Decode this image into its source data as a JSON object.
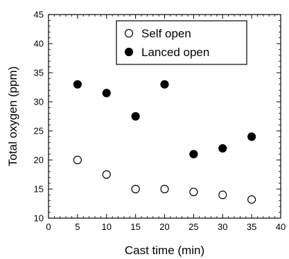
{
  "chart_data": {
    "type": "scatter",
    "xlabel": "Cast time (min)",
    "ylabel": "Total oxygen  (ppm)",
    "xlim": [
      0,
      40
    ],
    "ylim": [
      10,
      45
    ],
    "x_ticks": [
      "0",
      "5",
      "10",
      "15",
      "20",
      "25",
      "30",
      "35",
      "40"
    ],
    "y_ticks": [
      "10",
      "15",
      "20",
      "25",
      "30",
      "35",
      "40",
      "45"
    ],
    "grid": false,
    "legend_position": "top-right",
    "series": [
      {
        "name": "Self open",
        "marker": "open-circle",
        "color": "#000000",
        "points": [
          {
            "x": 5,
            "y": 20.0
          },
          {
            "x": 10,
            "y": 17.5
          },
          {
            "x": 15,
            "y": 15.0
          },
          {
            "x": 20,
            "y": 15.0
          },
          {
            "x": 25,
            "y": 14.5
          },
          {
            "x": 30,
            "y": 14.0
          },
          {
            "x": 35,
            "y": 13.2
          }
        ]
      },
      {
        "name": "Lanced open",
        "marker": "filled-circle",
        "color": "#000000",
        "points": [
          {
            "x": 5,
            "y": 33.0
          },
          {
            "x": 10,
            "y": 31.5
          },
          {
            "x": 15,
            "y": 27.5
          },
          {
            "x": 20,
            "y": 33.0
          },
          {
            "x": 25,
            "y": 21.0
          },
          {
            "x": 30,
            "y": 22.0
          },
          {
            "x": 35,
            "y": 24.0
          }
        ]
      }
    ]
  }
}
